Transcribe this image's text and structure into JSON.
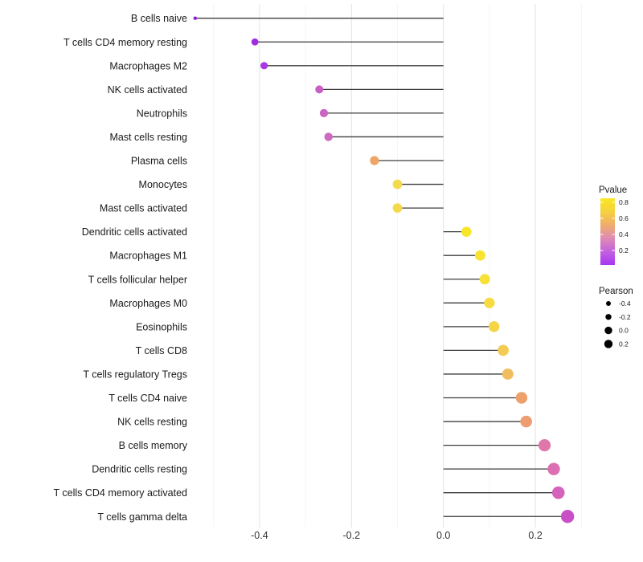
{
  "chart_data": {
    "type": "scatter",
    "variant": "lollipop",
    "title": "",
    "xlabel": "",
    "ylabel": "",
    "xlim": [
      -0.58,
      0.315
    ],
    "grid": "on",
    "legend_position": "right",
    "baseline": 0.0,
    "x_ticks": [
      {
        "value": -0.4,
        "label": "-0.4"
      },
      {
        "value": -0.2,
        "label": "-0.2"
      },
      {
        "value": 0.0,
        "label": "0.0"
      },
      {
        "value": 0.2,
        "label": "0.2"
      }
    ],
    "gridline_values": [
      -0.5,
      -0.4,
      -0.3,
      -0.2,
      -0.1,
      0.0,
      0.1,
      0.2,
      0.3
    ],
    "rows": [
      {
        "label": "B cells naive",
        "pearson": -0.54,
        "color": "#8B1FD1",
        "dot_radius": 2.2
      },
      {
        "label": "T cells CD4 memory resting",
        "pearson": -0.41,
        "color": "#A02CE0",
        "dot_radius": 4.4
      },
      {
        "label": "Macrophages M2",
        "pearson": -0.39,
        "color": "#A937E3",
        "dot_radius": 4.6
      },
      {
        "label": "NK cells activated",
        "pearson": -0.27,
        "color": "#C95FC5",
        "dot_radius": 5.0
      },
      {
        "label": "Neutrophils",
        "pearson": -0.26,
        "color": "#CB64C2",
        "dot_radius": 5.1
      },
      {
        "label": "Mast cells resting",
        "pearson": -0.25,
        "color": "#CD6AC0",
        "dot_radius": 5.2
      },
      {
        "label": "Plasma cells",
        "pearson": -0.15,
        "color": "#F0A566",
        "dot_radius": 5.6
      },
      {
        "label": "Monocytes",
        "pearson": -0.1,
        "color": "#F5DA4D",
        "dot_radius": 5.9
      },
      {
        "label": "Mast cells activated",
        "pearson": -0.1,
        "color": "#F5D94C",
        "dot_radius": 5.9
      },
      {
        "label": "Dendritic cells activated",
        "pearson": 0.05,
        "color": "#F8E62B",
        "dot_radius": 6.3
      },
      {
        "label": "Macrophages M1",
        "pearson": 0.08,
        "color": "#F8E430",
        "dot_radius": 6.5
      },
      {
        "label": "T cells follicular helper",
        "pearson": 0.09,
        "color": "#F7E038",
        "dot_radius": 6.5
      },
      {
        "label": "Macrophages M0",
        "pearson": 0.1,
        "color": "#F6DC40",
        "dot_radius": 6.6
      },
      {
        "label": "Eosinophils",
        "pearson": 0.11,
        "color": "#F5D547",
        "dot_radius": 6.7
      },
      {
        "label": "T cells CD8",
        "pearson": 0.13,
        "color": "#F3CB52",
        "dot_radius": 6.9
      },
      {
        "label": "T cells regulatory  Tregs",
        "pearson": 0.14,
        "color": "#F1BE5F",
        "dot_radius": 7.0
      },
      {
        "label": "T cells CD4 naive",
        "pearson": 0.17,
        "color": "#EEA06C",
        "dot_radius": 7.2
      },
      {
        "label": "NK cells resting",
        "pearson": 0.18,
        "color": "#ED9D71",
        "dot_radius": 7.3
      },
      {
        "label": "B cells memory",
        "pearson": 0.22,
        "color": "#DF77AB",
        "dot_radius": 7.6
      },
      {
        "label": "Dendritic cells resting",
        "pearson": 0.24,
        "color": "#DB6FB1",
        "dot_radius": 7.7
      },
      {
        "label": "T cells CD4 memory activated",
        "pearson": 0.25,
        "color": "#D562BB",
        "dot_radius": 7.8
      },
      {
        "label": "T cells gamma delta",
        "pearson": 0.27,
        "color": "#C94FC7",
        "dot_radius": 8.2
      }
    ],
    "legends": {
      "pvalue": {
        "title": "Pvalue",
        "ticks": [
          "0.8",
          "0.6",
          "0.4",
          "0.2"
        ],
        "gradient_top_to_bottom": [
          "#F9E721",
          "#F6D13F",
          "#EFAD6B",
          "#E08BB4",
          "#C261DF",
          "#A835F2"
        ]
      },
      "pearson": {
        "title": "Pearson",
        "dot_color": "#000000",
        "items": [
          {
            "label": "-0.4",
            "radius": 3.0
          },
          {
            "label": "-0.2",
            "radius": 3.7
          },
          {
            "label": "0.0",
            "radius": 4.7
          },
          {
            "label": "0.2",
            "radius": 5.2
          }
        ]
      }
    },
    "style_colors": {
      "segment": "#3D3D3D",
      "grid_major": "#E6E6E6",
      "grid_minor": "#F1F1F1",
      "axis_text": "#333333",
      "label_text": "#1A1A1A"
    }
  }
}
